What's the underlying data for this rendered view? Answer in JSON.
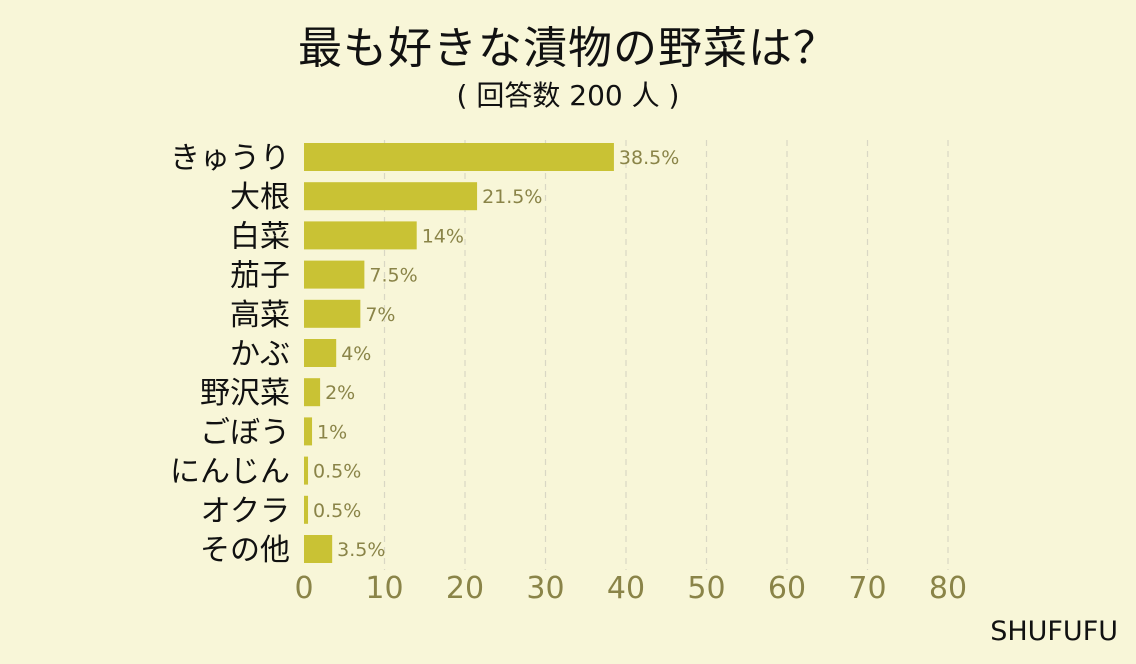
{
  "chart_data": {
    "type": "bar",
    "orientation": "horizontal",
    "title": "最も好きな漬物の野菜は？",
    "subtitle": "( 回答数 200 人 )",
    "categories": [
      "きゅうり",
      "大根",
      "白菜",
      "茄子",
      "高菜",
      "かぶ",
      "野沢菜",
      "ごぼう",
      "にんじん",
      "オクラ",
      "その他"
    ],
    "values": [
      38.5,
      21.5,
      14,
      7.5,
      7,
      4,
      2,
      1,
      0.5,
      0.5,
      3.5
    ],
    "value_labels": [
      "38.5%",
      "21.5%",
      "14%",
      "7.5%",
      "7%",
      "4%",
      "2%",
      "1%",
      "0.5%",
      "0.5%",
      "3.5%"
    ],
    "xlim": [
      0,
      80
    ],
    "x_ticks": [
      "0",
      "10",
      "20",
      "30",
      "40",
      "50",
      "60",
      "70",
      "80"
    ],
    "xlabel": "",
    "ylabel": "",
    "grid": "vertical dashed",
    "bar_color": "#c9c234",
    "background": "#f8f6d8"
  },
  "brand": "SHUFUFU"
}
